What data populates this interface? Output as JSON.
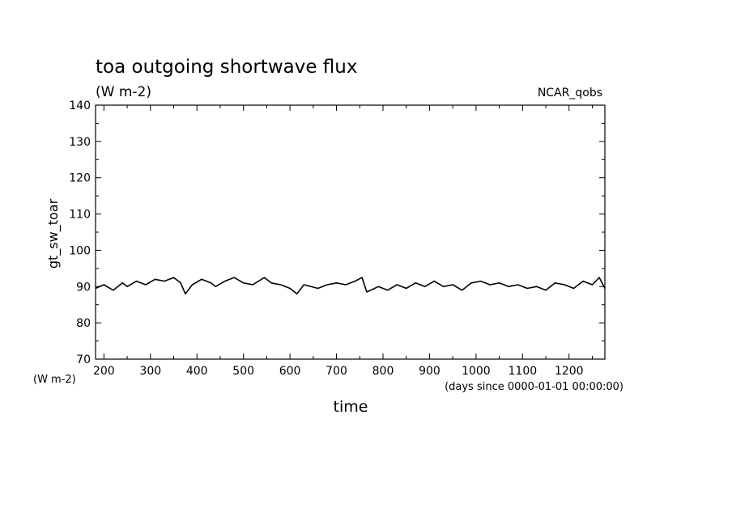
{
  "chart_data": {
    "type": "line",
    "title": "toa outgoing shortwave flux",
    "units": "(W m-2)",
    "run_label": "NCAR_qobs",
    "ylabel": "gt_sw_toar",
    "ylabel_units": "(W m-2)",
    "xlabel": "time",
    "xlabel_units": "(days since 0000-01-01 00:00:00)",
    "xlim": [
      182,
      1277
    ],
    "ylim": [
      70,
      140
    ],
    "x_ticks": [
      200,
      300,
      400,
      500,
      600,
      700,
      800,
      900,
      1000,
      1100,
      1200
    ],
    "x_tick_labels": [
      "200",
      "300",
      "400",
      "500",
      "600",
      "700",
      "800",
      "900",
      "1000",
      "1100",
      "1200"
    ],
    "y_ticks": [
      70,
      80,
      90,
      100,
      110,
      120,
      130,
      140
    ],
    "y_tick_labels": [
      "70",
      "80",
      "90",
      "100",
      "110",
      "120",
      "130",
      "140"
    ],
    "grid": false,
    "line_color": "#000000",
    "series": [
      {
        "x": [
          182,
          200,
          220,
          240,
          250,
          270,
          290,
          310,
          330,
          350,
          365,
          375,
          390,
          410,
          430,
          440,
          460,
          480,
          500,
          520,
          545,
          560,
          580,
          600,
          615,
          630,
          660,
          680,
          700,
          720,
          740,
          755,
          765,
          790,
          810,
          830,
          850,
          870,
          890,
          910,
          930,
          950,
          970,
          990,
          1010,
          1030,
          1050,
          1070,
          1090,
          1110,
          1130,
          1150,
          1170,
          1190,
          1210,
          1230,
          1250,
          1265,
          1277
        ],
        "y": [
          89.5,
          90.5,
          89.0,
          91.0,
          90.0,
          91.5,
          90.5,
          92.0,
          91.5,
          92.5,
          91.0,
          88.0,
          90.5,
          92.0,
          91.0,
          90.0,
          91.5,
          92.5,
          91.0,
          90.5,
          92.5,
          91.0,
          90.5,
          89.5,
          88.0,
          90.5,
          89.5,
          90.5,
          91.0,
          90.5,
          91.5,
          92.5,
          88.5,
          90.0,
          89.0,
          90.5,
          89.5,
          91.0,
          90.0,
          91.5,
          90.0,
          90.5,
          89.0,
          91.0,
          91.5,
          90.5,
          91.0,
          90.0,
          90.5,
          89.5,
          90.0,
          89.0,
          91.0,
          90.5,
          89.5,
          91.5,
          90.5,
          92.5,
          89.5
        ]
      }
    ]
  }
}
